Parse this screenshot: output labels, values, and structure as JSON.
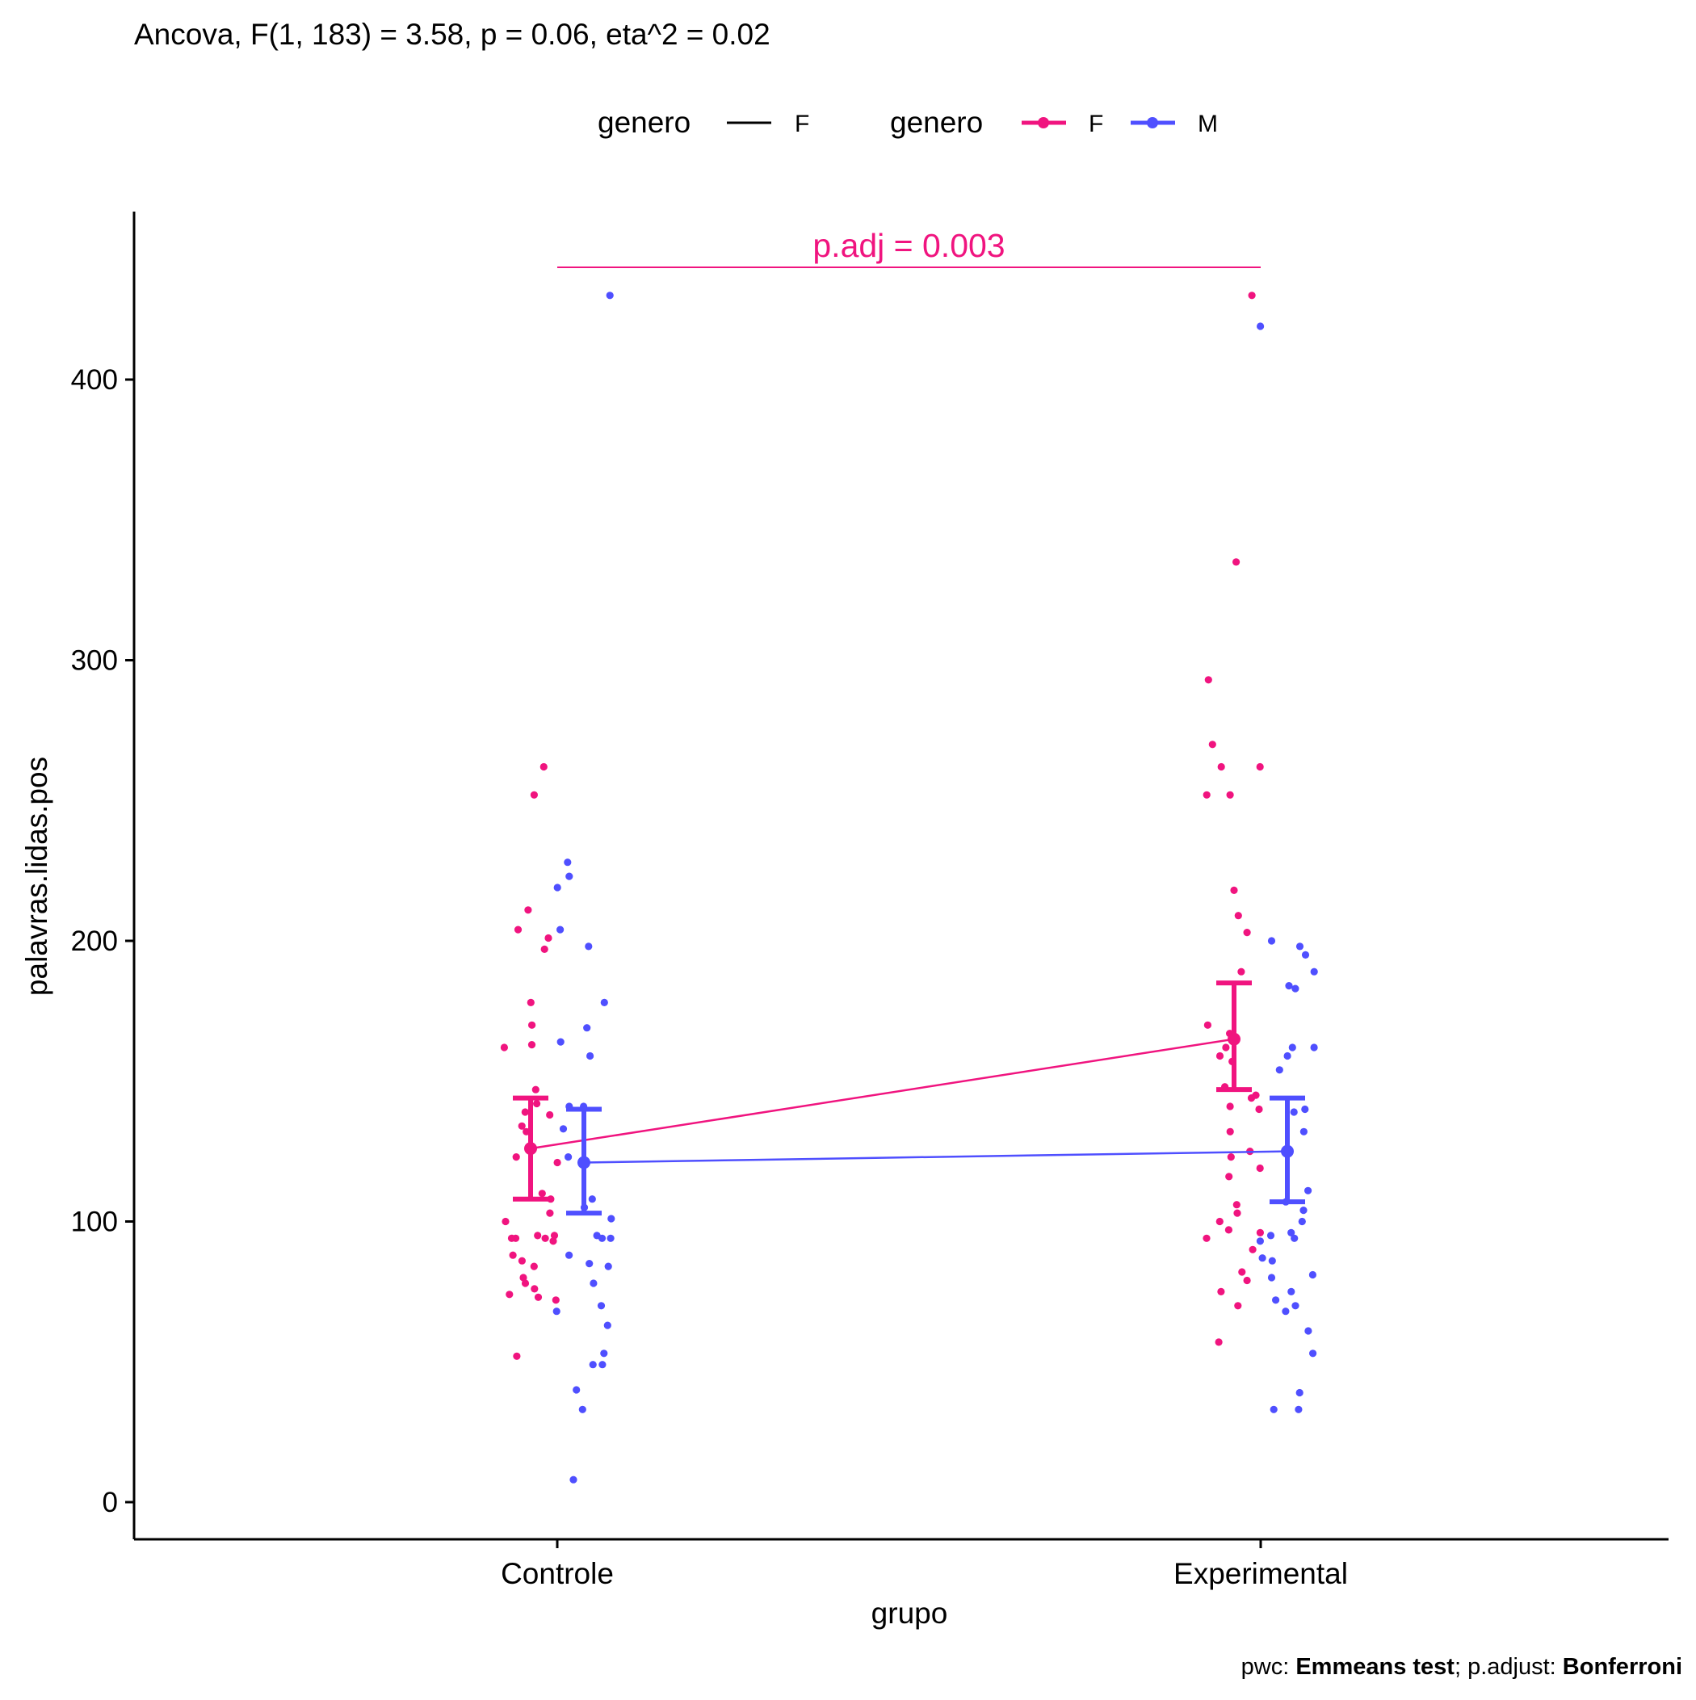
{
  "chart_data": {
    "type": "scatter",
    "title": "Ancova, F(1, 183) = 3.58, p = 0.06, eta^2 = 0.02",
    "xlabel": "grupo",
    "ylabel": "palavras.lidas.pos",
    "categories": [
      "Controle",
      "Experimental"
    ],
    "ylim": [
      -13,
      460
    ],
    "yticks": [
      0,
      100,
      200,
      300,
      400
    ],
    "grid": false,
    "legend_position": "top",
    "legend": {
      "line_group": {
        "title": "genero",
        "items": [
          {
            "label": "F",
            "color": "#000000"
          }
        ]
      },
      "point_group": {
        "title": "genero",
        "items": [
          {
            "label": "F",
            "color": "#f0147f"
          },
          {
            "label": "M",
            "color": "#4f4fff"
          }
        ]
      }
    },
    "annotation": {
      "text": "p.adj = 0.003",
      "from": "Controle",
      "to": "Experimental",
      "y": 440,
      "color": "#f0147f"
    },
    "caption": {
      "prefix": "pwc: ",
      "test": "Emmeans test",
      "middle": "; p.adjust: ",
      "method": "Bonferroni"
    },
    "colors": {
      "F": "#f0147f",
      "M": "#4f4fff",
      "axis": "#000000"
    },
    "series": [
      {
        "name": "F",
        "color": "#f0147f",
        "means": [
          126,
          165
        ],
        "ci_low": [
          108,
          147
        ],
        "ci_high": [
          144,
          185
        ],
        "points": [
          {
            "x": "Controle",
            "y": [
              262,
              252,
              211,
              204,
              201,
              197,
              178,
              170,
              163,
              162,
              147,
              142,
              139,
              138,
              134,
              132,
              123,
              121,
              110,
              108,
              103,
              100,
              95,
              95,
              94,
              94,
              94,
              93,
              88,
              86,
              84,
              80,
              78,
              76,
              74,
              73,
              72,
              52
            ]
          },
          {
            "x": "Experimental",
            "y": [
              430,
              335,
              293,
              270,
              262,
              262,
              252,
              252,
              218,
              209,
              203,
              189,
              170,
              167,
              162,
              159,
              157,
              148,
              145,
              144,
              141,
              140,
              132,
              125,
              123,
              119,
              116,
              106,
              103,
              100,
              97,
              96,
              94,
              90,
              82,
              79,
              75,
              70,
              57
            ]
          }
        ]
      },
      {
        "name": "M",
        "color": "#4f4fff",
        "means": [
          121,
          125
        ],
        "ci_low": [
          103,
          107
        ],
        "ci_high": [
          140,
          144
        ],
        "points": [
          {
            "x": "Controle",
            "y": [
              430,
              228,
              223,
              219,
              204,
              198,
              178,
              169,
              164,
              159,
              141,
              141,
              133,
              123,
              108,
              105,
              101,
              95,
              94,
              94,
              88,
              85,
              84,
              78,
              70,
              68,
              63,
              53,
              49,
              49,
              40,
              33,
              8
            ]
          },
          {
            "x": "Experimental",
            "y": [
              419,
              200,
              198,
              195,
              189,
              184,
              183,
              162,
              162,
              159,
              154,
              140,
              139,
              132,
              111,
              107,
              104,
              100,
              96,
              95,
              94,
              93,
              87,
              86,
              81,
              80,
              75,
              72,
              70,
              68,
              61,
              53,
              39,
              33,
              33
            ]
          }
        ]
      }
    ]
  }
}
